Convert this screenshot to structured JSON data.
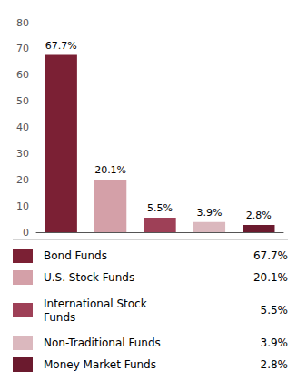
{
  "chart_data": {
    "type": "bar",
    "categories": [
      "Bond Funds",
      "U.S. Stock Funds",
      "International Stock\nFunds",
      "Non-Traditional Funds",
      "Money Market Funds"
    ],
    "values": [
      67.7,
      20.1,
      5.5,
      3.9,
      2.8
    ],
    "value_labels": [
      "67.7%",
      "20.1%",
      "5.5%",
      "3.9%",
      "2.8%"
    ],
    "colors": [
      "#7b2034",
      "#d4a0a8",
      "#9e4057",
      "#dbb8be",
      "#6b1a2e"
    ],
    "ylim": [
      0,
      80
    ],
    "yticks": [
      0,
      10,
      20,
      30,
      40,
      50,
      60,
      70,
      80
    ],
    "data_labels": true,
    "tick_labels": "y",
    "grid": false,
    "legend": "bottom"
  }
}
